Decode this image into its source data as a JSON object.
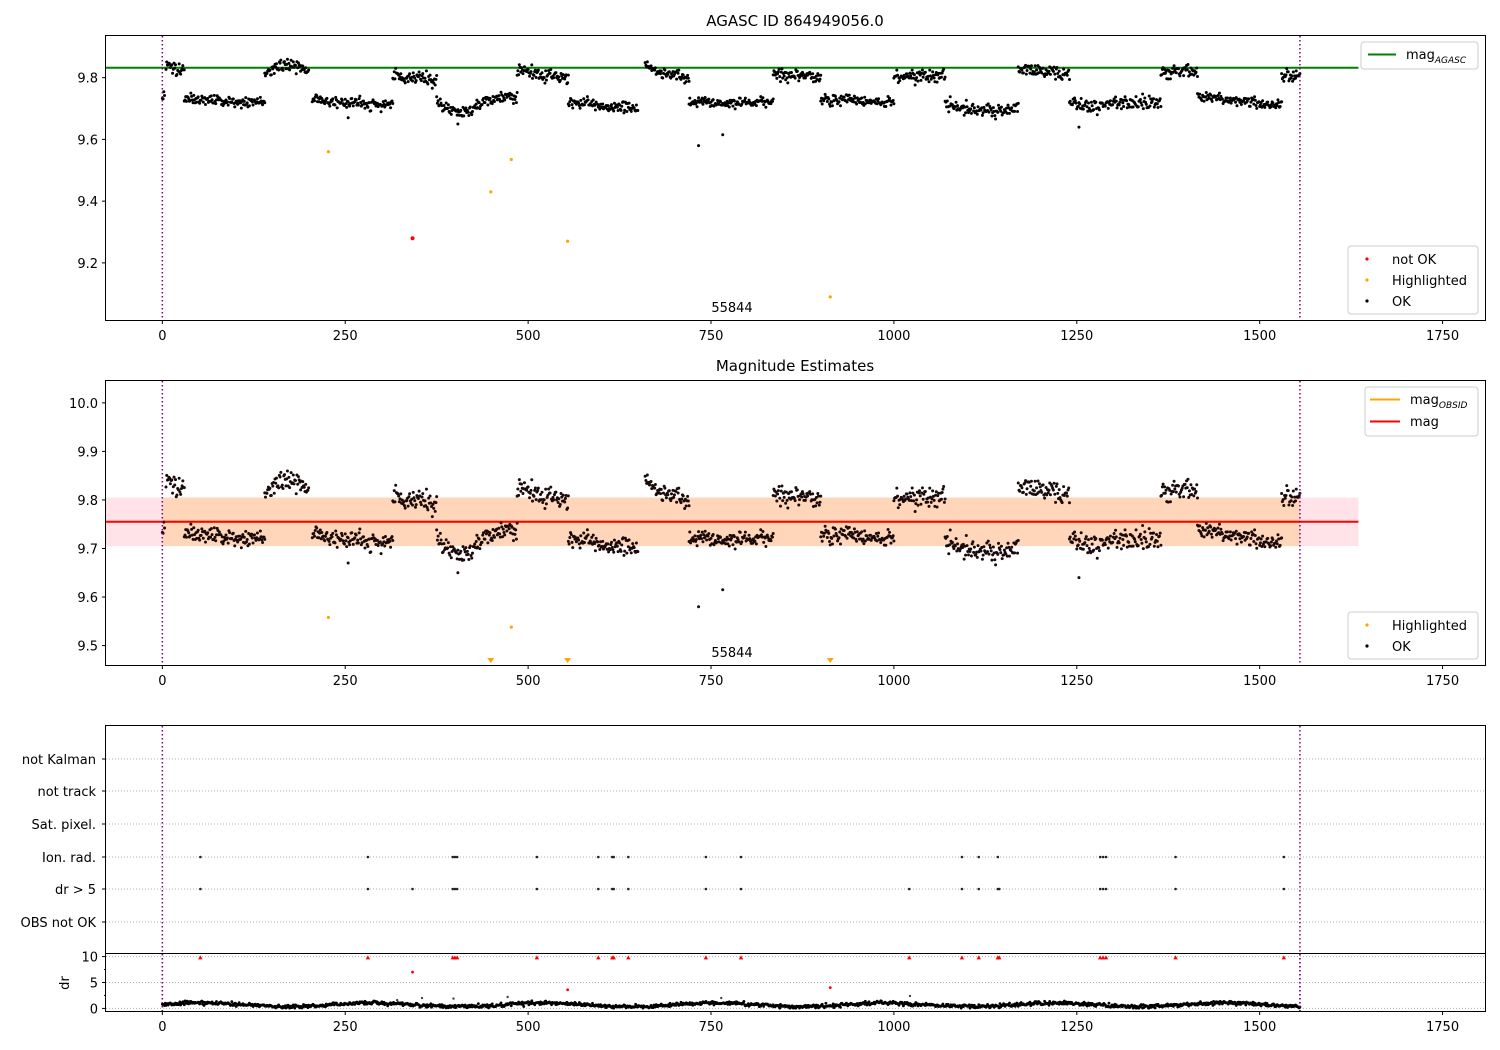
{
  "chart_data": [
    {
      "type": "scatter",
      "title": "AGASC ID 864949056.0",
      "xlabel": "",
      "ylabel": "",
      "xlim": [
        -77,
        1808
      ],
      "ylim": [
        9.015,
        9.935
      ],
      "xticks": [
        0,
        250,
        500,
        750,
        1000,
        1250,
        1500,
        1750
      ],
      "yticks": [
        9.2,
        9.4,
        9.6,
        9.8
      ],
      "grid": false,
      "obs_boundaries": [
        0,
        1555
      ],
      "annotation": "55844",
      "legends": [
        {
          "placement": "top-right",
          "entries": [
            {
              "label": "mag",
              "subscript": "AGASC",
              "color": "#008000",
              "kind": "line"
            }
          ]
        },
        {
          "placement": "lower-right",
          "entries": [
            {
              "label": "not OK",
              "color": "#ff0000",
              "kind": "marker"
            },
            {
              "label": "Highlighted",
              "color": "#ffa500",
              "kind": "marker"
            },
            {
              "label": "OK",
              "color": "#000000",
              "kind": "marker"
            }
          ]
        }
      ],
      "hline": {
        "name": "mag_AGASC",
        "y": 9.832,
        "x_range": [
          -77,
          1635
        ],
        "color": "#008000"
      },
      "ok_segments": [
        {
          "x": [
            0,
            3
          ],
          "base": 9.75,
          "end": 9.75,
          "noise": 0.012
        },
        {
          "x": [
            5,
            30
          ],
          "base": 9.85,
          "end": 9.82,
          "noise": 0.012
        },
        {
          "x": [
            30,
            140
          ],
          "base": 9.73,
          "end": 9.72,
          "noise": 0.008
        },
        {
          "x": [
            140,
            200
          ],
          "base": 9.81,
          "end": 9.82,
          "bump": 0.025,
          "noise": 0.01
        },
        {
          "x": [
            205,
            315
          ],
          "base": 9.73,
          "end": 9.71,
          "noise": 0.01
        },
        {
          "x": [
            315,
            375
          ],
          "base": 9.81,
          "end": 9.79,
          "noise": 0.01
        },
        {
          "x": [
            375,
            430
          ],
          "base": 9.72,
          "end": 9.7,
          "dip": 0.02,
          "noise": 0.01
        },
        {
          "x": [
            430,
            485
          ],
          "base": 9.72,
          "end": 9.74,
          "noise": 0.01
        },
        {
          "x": [
            485,
            555
          ],
          "base": 9.82,
          "end": 9.8,
          "noise": 0.01
        },
        {
          "x": [
            555,
            650
          ],
          "base": 9.72,
          "end": 9.7,
          "noise": 0.01
        },
        {
          "x": [
            660,
            720
          ],
          "base": 9.835,
          "end": 9.79,
          "noise": 0.008
        },
        {
          "x": [
            720,
            835
          ],
          "base": 9.72,
          "end": 9.72,
          "noise": 0.009
        },
        {
          "x": [
            835,
            900
          ],
          "base": 9.81,
          "end": 9.8,
          "noise": 0.009
        },
        {
          "x": [
            900,
            1000
          ],
          "base": 9.73,
          "end": 9.72,
          "noise": 0.008
        },
        {
          "x": [
            1000,
            1070
          ],
          "base": 9.8,
          "end": 9.81,
          "noise": 0.01
        },
        {
          "x": [
            1070,
            1170
          ],
          "base": 9.72,
          "end": 9.7,
          "dip": 0.015,
          "noise": 0.01
        },
        {
          "x": [
            1170,
            1240
          ],
          "base": 9.83,
          "end": 9.81,
          "noise": 0.01
        },
        {
          "x": [
            1240,
            1365
          ],
          "base": 9.71,
          "end": 9.72,
          "noise": 0.012
        },
        {
          "x": [
            1365,
            1415
          ],
          "base": 9.81,
          "end": 9.83,
          "noise": 0.01
        },
        {
          "x": [
            1415,
            1530
          ],
          "base": 9.74,
          "end": 9.71,
          "noise": 0.008
        },
        {
          "x": [
            1530,
            1555
          ],
          "base": 9.8,
          "end": 9.81,
          "noise": 0.01
        }
      ],
      "ok_outliers": [
        {
          "x": 254,
          "y": 9.67
        },
        {
          "x": 404,
          "y": 9.65
        },
        {
          "x": 733,
          "y": 9.58
        },
        {
          "x": 766,
          "y": 9.615
        },
        {
          "x": 1253,
          "y": 9.64
        }
      ],
      "highlighted": [
        {
          "x": 227,
          "y": 9.56
        },
        {
          "x": 449,
          "y": 9.43
        },
        {
          "x": 477,
          "y": 9.535
        },
        {
          "x": 554,
          "y": 9.27
        },
        {
          "x": 913,
          "y": 9.09
        }
      ],
      "not_ok": [
        {
          "x": 342,
          "y": 9.28
        }
      ]
    },
    {
      "type": "scatter",
      "title": "Magnitude Estimates",
      "xlabel": "",
      "ylabel": "",
      "xlim": [
        -77,
        1808
      ],
      "ylim": [
        9.46,
        10.045
      ],
      "xticks": [
        0,
        250,
        500,
        750,
        1000,
        1250,
        1500,
        1750
      ],
      "yticks": [
        9.5,
        9.6,
        9.7,
        9.8,
        9.9,
        10.0
      ],
      "grid": false,
      "obs_boundaries": [
        0,
        1555
      ],
      "annotation": "55844",
      "legends": [
        {
          "placement": "top-right",
          "entries": [
            {
              "label": "mag",
              "subscript": "OBSID",
              "color": "#ffa500",
              "kind": "line"
            },
            {
              "label": "mag",
              "color": "#ff0000",
              "kind": "line"
            }
          ]
        },
        {
          "placement": "lower-right",
          "entries": [
            {
              "label": "Highlighted",
              "color": "#ffa500",
              "kind": "marker"
            },
            {
              "label": "OK",
              "color": "#000000",
              "kind": "marker"
            }
          ]
        }
      ],
      "mag_line": {
        "y": 9.755,
        "x_range": [
          -77,
          1635
        ],
        "color": "#ff0000"
      },
      "mag_band": {
        "y": [
          9.705,
          9.805
        ],
        "x_range": [
          -77,
          1635
        ],
        "color": "#ffc0cb"
      },
      "obsid_band": {
        "y": [
          9.705,
          9.805
        ],
        "x_range": [
          0,
          1555
        ],
        "color": "#ffa500"
      },
      "obsid_line": {
        "y": 9.755,
        "x_range": [
          0,
          1555
        ],
        "color": "#ffa500"
      },
      "highlighted": [
        {
          "x": 227,
          "y": 9.558
        },
        {
          "x": 477,
          "y": 9.538
        }
      ],
      "highlighted_below": [
        449,
        554,
        913
      ]
    },
    {
      "type": "scatter",
      "title": "",
      "xlabel": "",
      "ylabel": "",
      "xlim": [
        -77,
        1808
      ],
      "obs_boundaries": [
        0,
        1555
      ],
      "flag_rows": [
        "not Kalman",
        "not track",
        "Sat. pixel.",
        "Ion. rad.",
        "dr > 5",
        "OBS not OK"
      ],
      "flags": {
        "Ion. rad.": [
          52,
          281,
          397,
          400,
          403,
          512,
          596,
          615,
          617,
          637,
          743,
          791,
          1093,
          1116,
          1142,
          1282,
          1286,
          1290,
          1385,
          1533
        ],
        "dr > 5": [
          52,
          281,
          342,
          397,
          400,
          403,
          512,
          596,
          615,
          617,
          637,
          743,
          791,
          1021,
          1093,
          1116,
          1142,
          1144,
          1282,
          1286,
          1290,
          1385,
          1533
        ]
      }
    },
    {
      "type": "scatter",
      "title": "",
      "xlabel": "",
      "ylabel": "dr",
      "xlim": [
        -77,
        1808
      ],
      "ylim": [
        -0.5,
        10.5
      ],
      "yticks": [
        0,
        5,
        10
      ],
      "grid": true,
      "obs_boundaries": [
        0,
        1555
      ],
      "baseline": {
        "mean": 0.7,
        "spread": 0.45
      },
      "dr_gray": [
        {
          "x": 398,
          "y": 1.9
        },
        {
          "x": 472,
          "y": 2.2
        },
        {
          "x": 764,
          "y": 2.0
        },
        {
          "x": 1022,
          "y": 2.4
        },
        {
          "x": 321,
          "y": 1.6
        },
        {
          "x": 355,
          "y": 2.0
        }
      ],
      "dr_red": [
        {
          "x": 342,
          "y": 7.0
        },
        {
          "x": 554,
          "y": 3.6
        },
        {
          "x": 913,
          "y": 4.0
        }
      ],
      "dr_clipped": [
        52,
        281,
        397,
        400,
        403,
        512,
        596,
        615,
        617,
        637,
        743,
        791,
        1021,
        1093,
        1116,
        1142,
        1144,
        1282,
        1286,
        1290,
        1385,
        1533
      ]
    }
  ]
}
